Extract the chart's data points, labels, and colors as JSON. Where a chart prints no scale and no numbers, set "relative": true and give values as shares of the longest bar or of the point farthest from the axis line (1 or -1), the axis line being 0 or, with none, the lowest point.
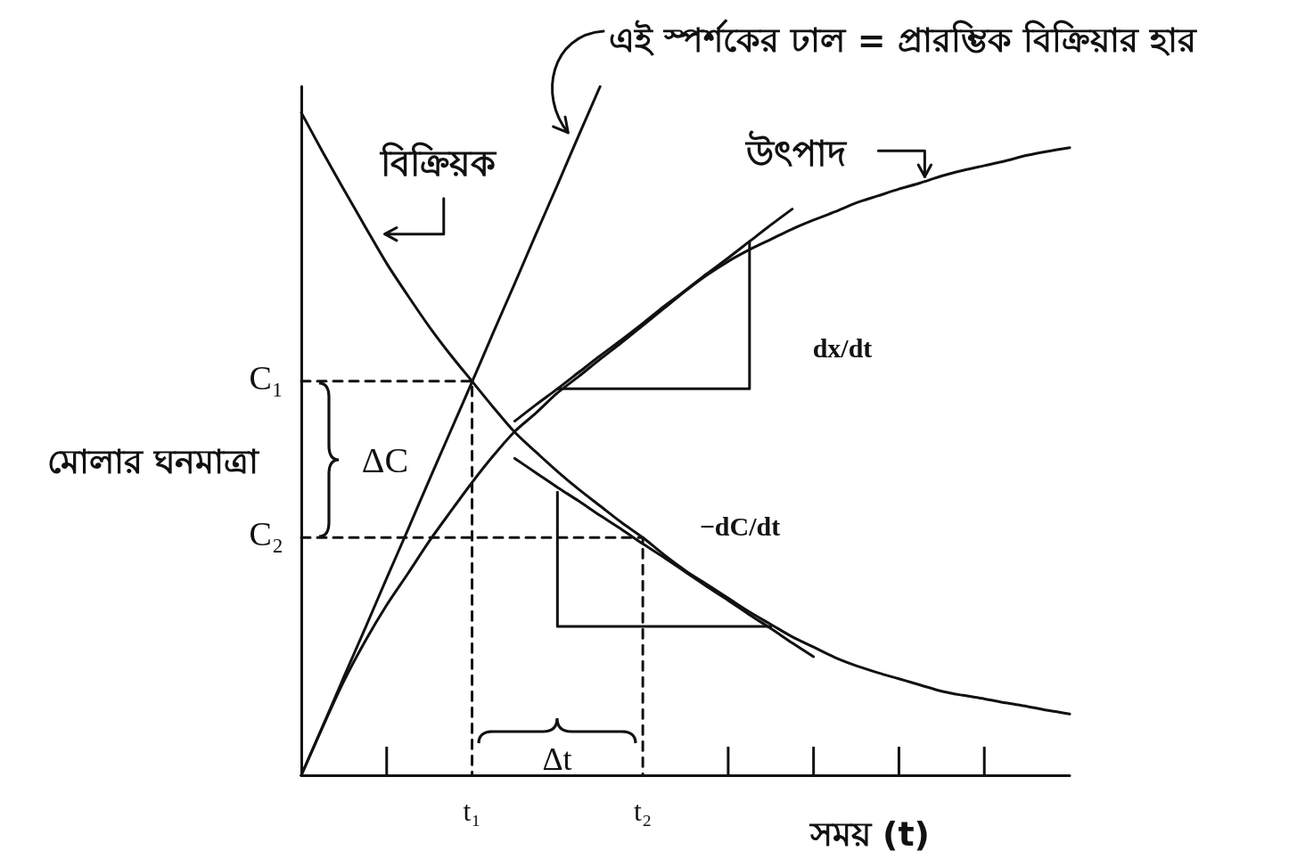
{
  "chart_data": {
    "type": "line",
    "relative": true,
    "annotations": [
      "এই স্পর্শকের ঢাল = প্রারম্ভিক বিক্রিয়ার হার",
      "C₁",
      "C₂",
      "ΔC",
      "Δt",
      "dx/dt",
      "−dC/dt"
    ],
    "xlabel": "সময় (t)",
    "ylabel": "মোলার ঘনমাত্রা",
    "categories": [
      null,
      null,
      null,
      null,
      null,
      null,
      null,
      null,
      "t₁",
      null,
      null,
      null,
      null,
      null,
      null,
      null,
      "t₂",
      null,
      null,
      null,
      null,
      null,
      null,
      null,
      null,
      null,
      null,
      null,
      null,
      null,
      null,
      null,
      null,
      null,
      null,
      null,
      null
    ],
    "grid": false,
    "marker": "none",
    "line_style": "solid",
    "series": [
      {
        "name": "বিক্রিয়ক",
        "color": "#111111",
        "values": [
          0.962,
          0.905,
          0.85,
          0.796,
          0.743,
          0.696,
          0.651,
          0.61,
          0.572,
          0.534,
          0.498,
          0.469,
          0.441,
          0.415,
          0.391,
          0.367,
          0.345,
          0.32,
          0.297,
          0.277,
          0.257,
          0.237,
          0.219,
          0.201,
          0.186,
          0.171,
          0.159,
          0.149,
          0.14,
          0.131,
          0.122,
          0.116,
          0.111,
          0.105,
          0.1,
          0.094,
          0.089
        ]
      },
      {
        "name": "উৎপাদ",
        "color": "#111111",
        "values": [
          0,
          0.07,
          0.137,
          0.195,
          0.247,
          0.293,
          0.34,
          0.383,
          0.425,
          0.464,
          0.499,
          0.526,
          0.555,
          0.579,
          0.604,
          0.628,
          0.653,
          0.678,
          0.703,
          0.726,
          0.746,
          0.763,
          0.778,
          0.793,
          0.806,
          0.818,
          0.831,
          0.841,
          0.851,
          0.86,
          0.87,
          0.878,
          0.885,
          0.892,
          0.9,
          0.906,
          0.911
        ]
      },
      {
        "color": "#111111",
        "values": [
          0,
          0.071,
          0.143,
          0.214,
          0.286,
          0.357,
          0.429,
          0.5,
          0.571,
          0.643,
          0.714,
          0.786,
          0.857,
          0.929,
          1,
          null,
          null,
          null,
          null,
          null,
          null,
          null,
          null,
          null,
          null,
          null,
          null,
          null,
          null,
          null,
          null,
          null,
          null,
          null,
          null,
          null,
          null
        ]
      },
      {
        "color": "#111111",
        "values": [
          null,
          null,
          null,
          null,
          null,
          null,
          null,
          null,
          null,
          null,
          0.514,
          0.538,
          0.561,
          0.585,
          0.609,
          0.632,
          0.656,
          0.681,
          0.704,
          0.728,
          0.751,
          0.775,
          0.799,
          0.822,
          null,
          null,
          null,
          null,
          null,
          null,
          null,
          null,
          null,
          null,
          null,
          null,
          null
        ]
      },
      {
        "type": "step",
        "color": "#111111",
        "values": [
          null,
          null,
          null,
          null,
          null,
          null,
          null,
          null,
          null,
          null,
          null,
          null,
          0.561,
          0.561,
          0.561,
          0.561,
          0.561,
          0.561,
          0.561,
          0.561,
          0.561,
          0.775,
          null,
          null,
          null,
          null,
          null,
          null,
          null,
          null,
          null,
          null,
          null,
          null,
          null,
          null,
          null
        ]
      },
      {
        "color": "#111111",
        "values": [
          null,
          null,
          null,
          null,
          null,
          null,
          null,
          null,
          null,
          null,
          0.46,
          0.439,
          0.418,
          0.398,
          0.377,
          0.357,
          0.336,
          0.316,
          0.295,
          0.274,
          0.254,
          0.233,
          0.213,
          0.192,
          0.172,
          null,
          null,
          null,
          null,
          null,
          null,
          null,
          null,
          null,
          null,
          null,
          null
        ]
      },
      {
        "type": "step",
        "color": "#111111",
        "values": [
          null,
          null,
          null,
          null,
          null,
          null,
          null,
          null,
          null,
          null,
          null,
          null,
          0.411,
          0.216,
          0.216,
          0.216,
          0.216,
          0.216,
          0.216,
          0.216,
          0.216,
          0.216,
          0.216,
          null,
          null,
          null,
          null,
          null,
          null,
          null,
          null,
          null,
          null,
          null,
          null,
          null,
          null
        ]
      },
      {
        "type": "step",
        "color": "#111111",
        "line_style": "dashed",
        "values": [
          0.572,
          0.572,
          0.572,
          0.572,
          0.572,
          0.572,
          0.572,
          0.572,
          0,
          null,
          null,
          null,
          null,
          null,
          null,
          null,
          null,
          null,
          null,
          null,
          null,
          null,
          null,
          null,
          null,
          null,
          null,
          null,
          null,
          null,
          null,
          null,
          null,
          null,
          null,
          null,
          null
        ]
      },
      {
        "type": "step",
        "color": "#111111",
        "line_style": "dashed",
        "values": [
          0.345,
          0.345,
          0.345,
          0.345,
          0.345,
          0.345,
          0.345,
          0.345,
          0.345,
          0.345,
          0.345,
          0.345,
          0.345,
          0.345,
          0.345,
          0.345,
          0,
          null,
          null,
          null,
          null,
          null,
          null,
          null,
          null,
          null,
          null,
          null,
          null,
          null,
          null,
          null,
          null,
          null,
          null,
          null,
          null
        ]
      }
    ]
  }
}
